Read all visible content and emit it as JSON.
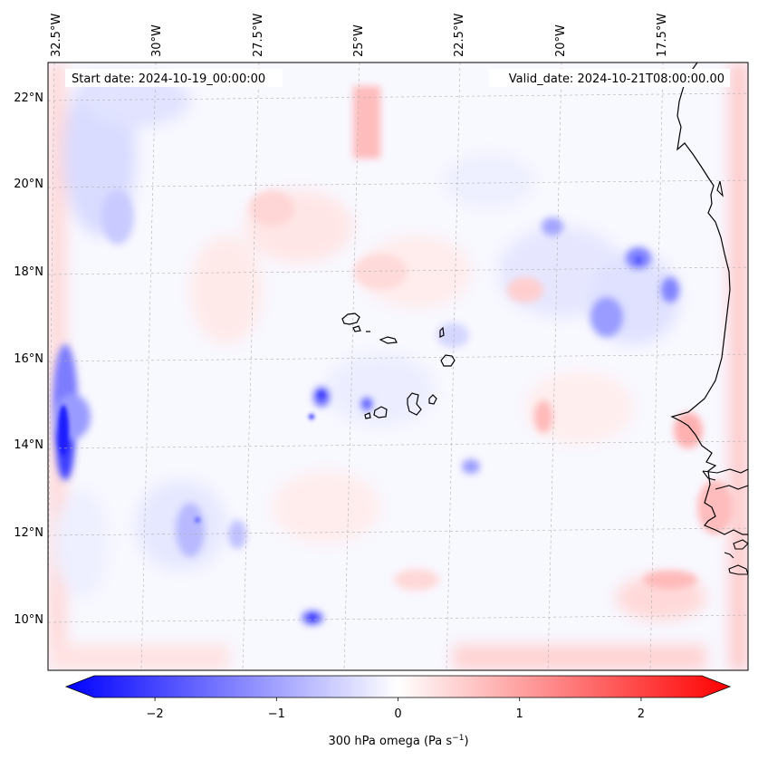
{
  "header": {
    "start_date": "Start date: 2024-10-19_00:00:00",
    "valid_date": "Valid_date: 2024-10-21T08:00:00.00"
  },
  "axes": {
    "lon_labels": [
      "32.5°W",
      "30°W",
      "27.5°W",
      "25°W",
      "22.5°W",
      "20°W",
      "17.5°W"
    ],
    "lat_labels": [
      "22°N",
      "20°N",
      "18°N",
      "16°N",
      "14°N",
      "12°N",
      "10°N"
    ]
  },
  "colorbar": {
    "ticks": [
      "−2",
      "−1",
      "0",
      "1",
      "2"
    ],
    "tick_values": [
      -2,
      -1,
      0,
      1,
      2
    ],
    "vmin": -2.5,
    "vmax": 2.5,
    "label_main": "300 hPa omega (Pa s",
    "label_exp": "−1",
    "label_close": ")",
    "colors": {
      "negative": "#0000ff",
      "zero": "#ffffff",
      "positive": "#ff0000"
    },
    "extend": "both"
  },
  "map": {
    "field": "300 hPa omega",
    "colormap": "bwr",
    "coastlines": true,
    "gridlines": "dashed",
    "land_features": [
      "African coast (Mauritania / Senegal)",
      "Cape Verde islands"
    ]
  }
}
